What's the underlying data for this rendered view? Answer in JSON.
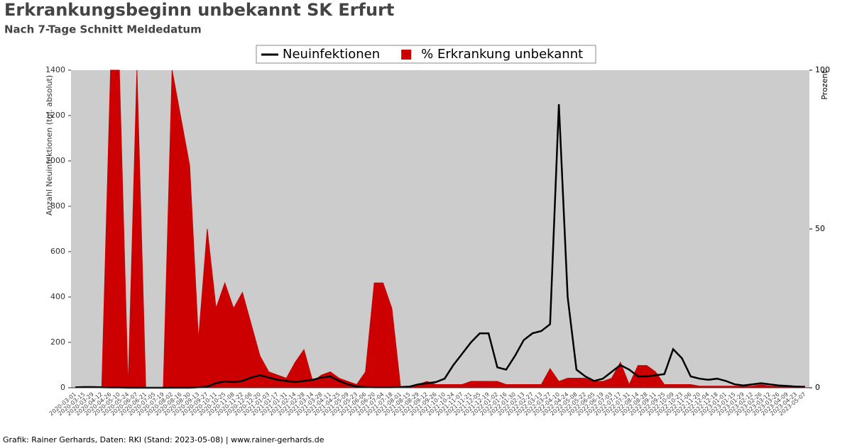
{
  "chart_data": {
    "type": "line",
    "title": "Erkrankungsbeginn unbekannt SK Erfurt",
    "subtitle": "Nach 7-Tage Schnitt Meldedatum",
    "y_label": "Anzahl Neuinfektionen (tgl. absolut)",
    "y2_label": "Prozent",
    "footer": "Grafik: Rainer Gerhards, Daten: RKI (Stand: 2023-05-08) | www.rainer-gerhards.de",
    "x": [
      "2020-03-01",
      "2020-03-15",
      "2020-03-29",
      "2020-04-12",
      "2020-04-26",
      "2020-05-10",
      "2020-05-24",
      "2020-06-07",
      "2020-06-21",
      "2020-07-05",
      "2020-07-19",
      "2020-08-02",
      "2020-08-16",
      "2020-08-30",
      "2020-09-13",
      "2020-09-27",
      "2020-10-11",
      "2020-10-25",
      "2020-11-08",
      "2020-11-22",
      "2020-12-06",
      "2020-12-20",
      "2021-01-03",
      "2021-01-17",
      "2021-01-31",
      "2021-02-14",
      "2021-02-28",
      "2021-03-14",
      "2021-03-28",
      "2021-04-11",
      "2021-04-25",
      "2021-05-09",
      "2021-05-23",
      "2021-06-06",
      "2021-06-20",
      "2021-07-04",
      "2021-07-18",
      "2021-08-01",
      "2021-08-15",
      "2021-08-29",
      "2021-09-12",
      "2021-09-26",
      "2021-10-10",
      "2021-10-24",
      "2021-11-07",
      "2021-11-21",
      "2021-12-05",
      "2021-12-19",
      "2022-01-02",
      "2022-01-16",
      "2022-01-30",
      "2022-02-13",
      "2022-02-27",
      "2022-03-13",
      "2022-03-27",
      "2022-04-10",
      "2022-04-24",
      "2022-05-08",
      "2022-05-22",
      "2022-06-05",
      "2022-06-19",
      "2022-07-03",
      "2022-07-17",
      "2022-07-31",
      "2022-08-14",
      "2022-08-28",
      "2022-09-11",
      "2022-09-25",
      "2022-10-09",
      "2022-10-23",
      "2022-11-06",
      "2022-11-20",
      "2022-12-04",
      "2022-12-18",
      "2023-01-01",
      "2023-01-15",
      "2023-01-29",
      "2023-02-12",
      "2023-02-26",
      "2023-03-12",
      "2023-03-26",
      "2023-04-09",
      "2023-04-23",
      "2023-05-07"
    ],
    "series": [
      {
        "name": "Neuinfektionen",
        "color": "#000000",
        "style": "line",
        "values": [
          2,
          3,
          3,
          2,
          1,
          1,
          0,
          0,
          0,
          0,
          0,
          0,
          0,
          0,
          2,
          5,
          20,
          28,
          25,
          30,
          45,
          55,
          45,
          35,
          30,
          25,
          30,
          35,
          45,
          50,
          30,
          15,
          5,
          3,
          2,
          2,
          2,
          3,
          5,
          15,
          20,
          25,
          40,
          100,
          150,
          200,
          240,
          240,
          90,
          80,
          140,
          210,
          240,
          250,
          280,
          1250,
          400,
          80,
          50,
          30,
          40,
          70,
          100,
          80,
          50,
          50,
          55,
          60,
          170,
          130,
          50,
          40,
          35,
          40,
          30,
          15,
          10,
          15,
          20,
          15,
          10,
          8,
          5,
          3
        ]
      },
      {
        "name": "% Erkrankung unbekannt",
        "color": "#cc0000",
        "style": "area",
        "axis": "y2",
        "values": [
          0,
          0,
          0,
          0,
          100,
          100,
          0,
          100,
          0,
          0,
          0,
          100,
          85,
          70,
          15,
          50,
          25,
          33,
          25,
          30,
          20,
          10,
          5,
          4,
          3,
          8,
          12,
          2,
          4,
          5,
          3,
          2,
          1,
          5,
          33,
          33,
          25,
          0,
          0,
          1,
          2,
          1,
          1,
          1,
          1,
          2,
          2,
          2,
          2,
          1,
          1,
          1,
          1,
          1,
          6,
          2,
          3,
          3,
          3,
          2,
          2,
          3,
          8,
          1,
          7,
          7,
          5,
          1,
          1,
          1,
          1,
          0.5,
          0.5,
          0.5,
          0.5,
          0.5,
          0.5,
          0.5,
          1,
          0.5,
          0.5,
          0.5,
          0.5,
          0.5
        ]
      }
    ],
    "ylim": [
      0,
      1400
    ],
    "yticks": [
      0,
      200,
      400,
      600,
      800,
      1000,
      1200,
      1400
    ],
    "y2lim": [
      0,
      100
    ],
    "y2ticks": [
      0,
      50,
      100
    ],
    "background": "#cccccc",
    "legend": "top"
  }
}
